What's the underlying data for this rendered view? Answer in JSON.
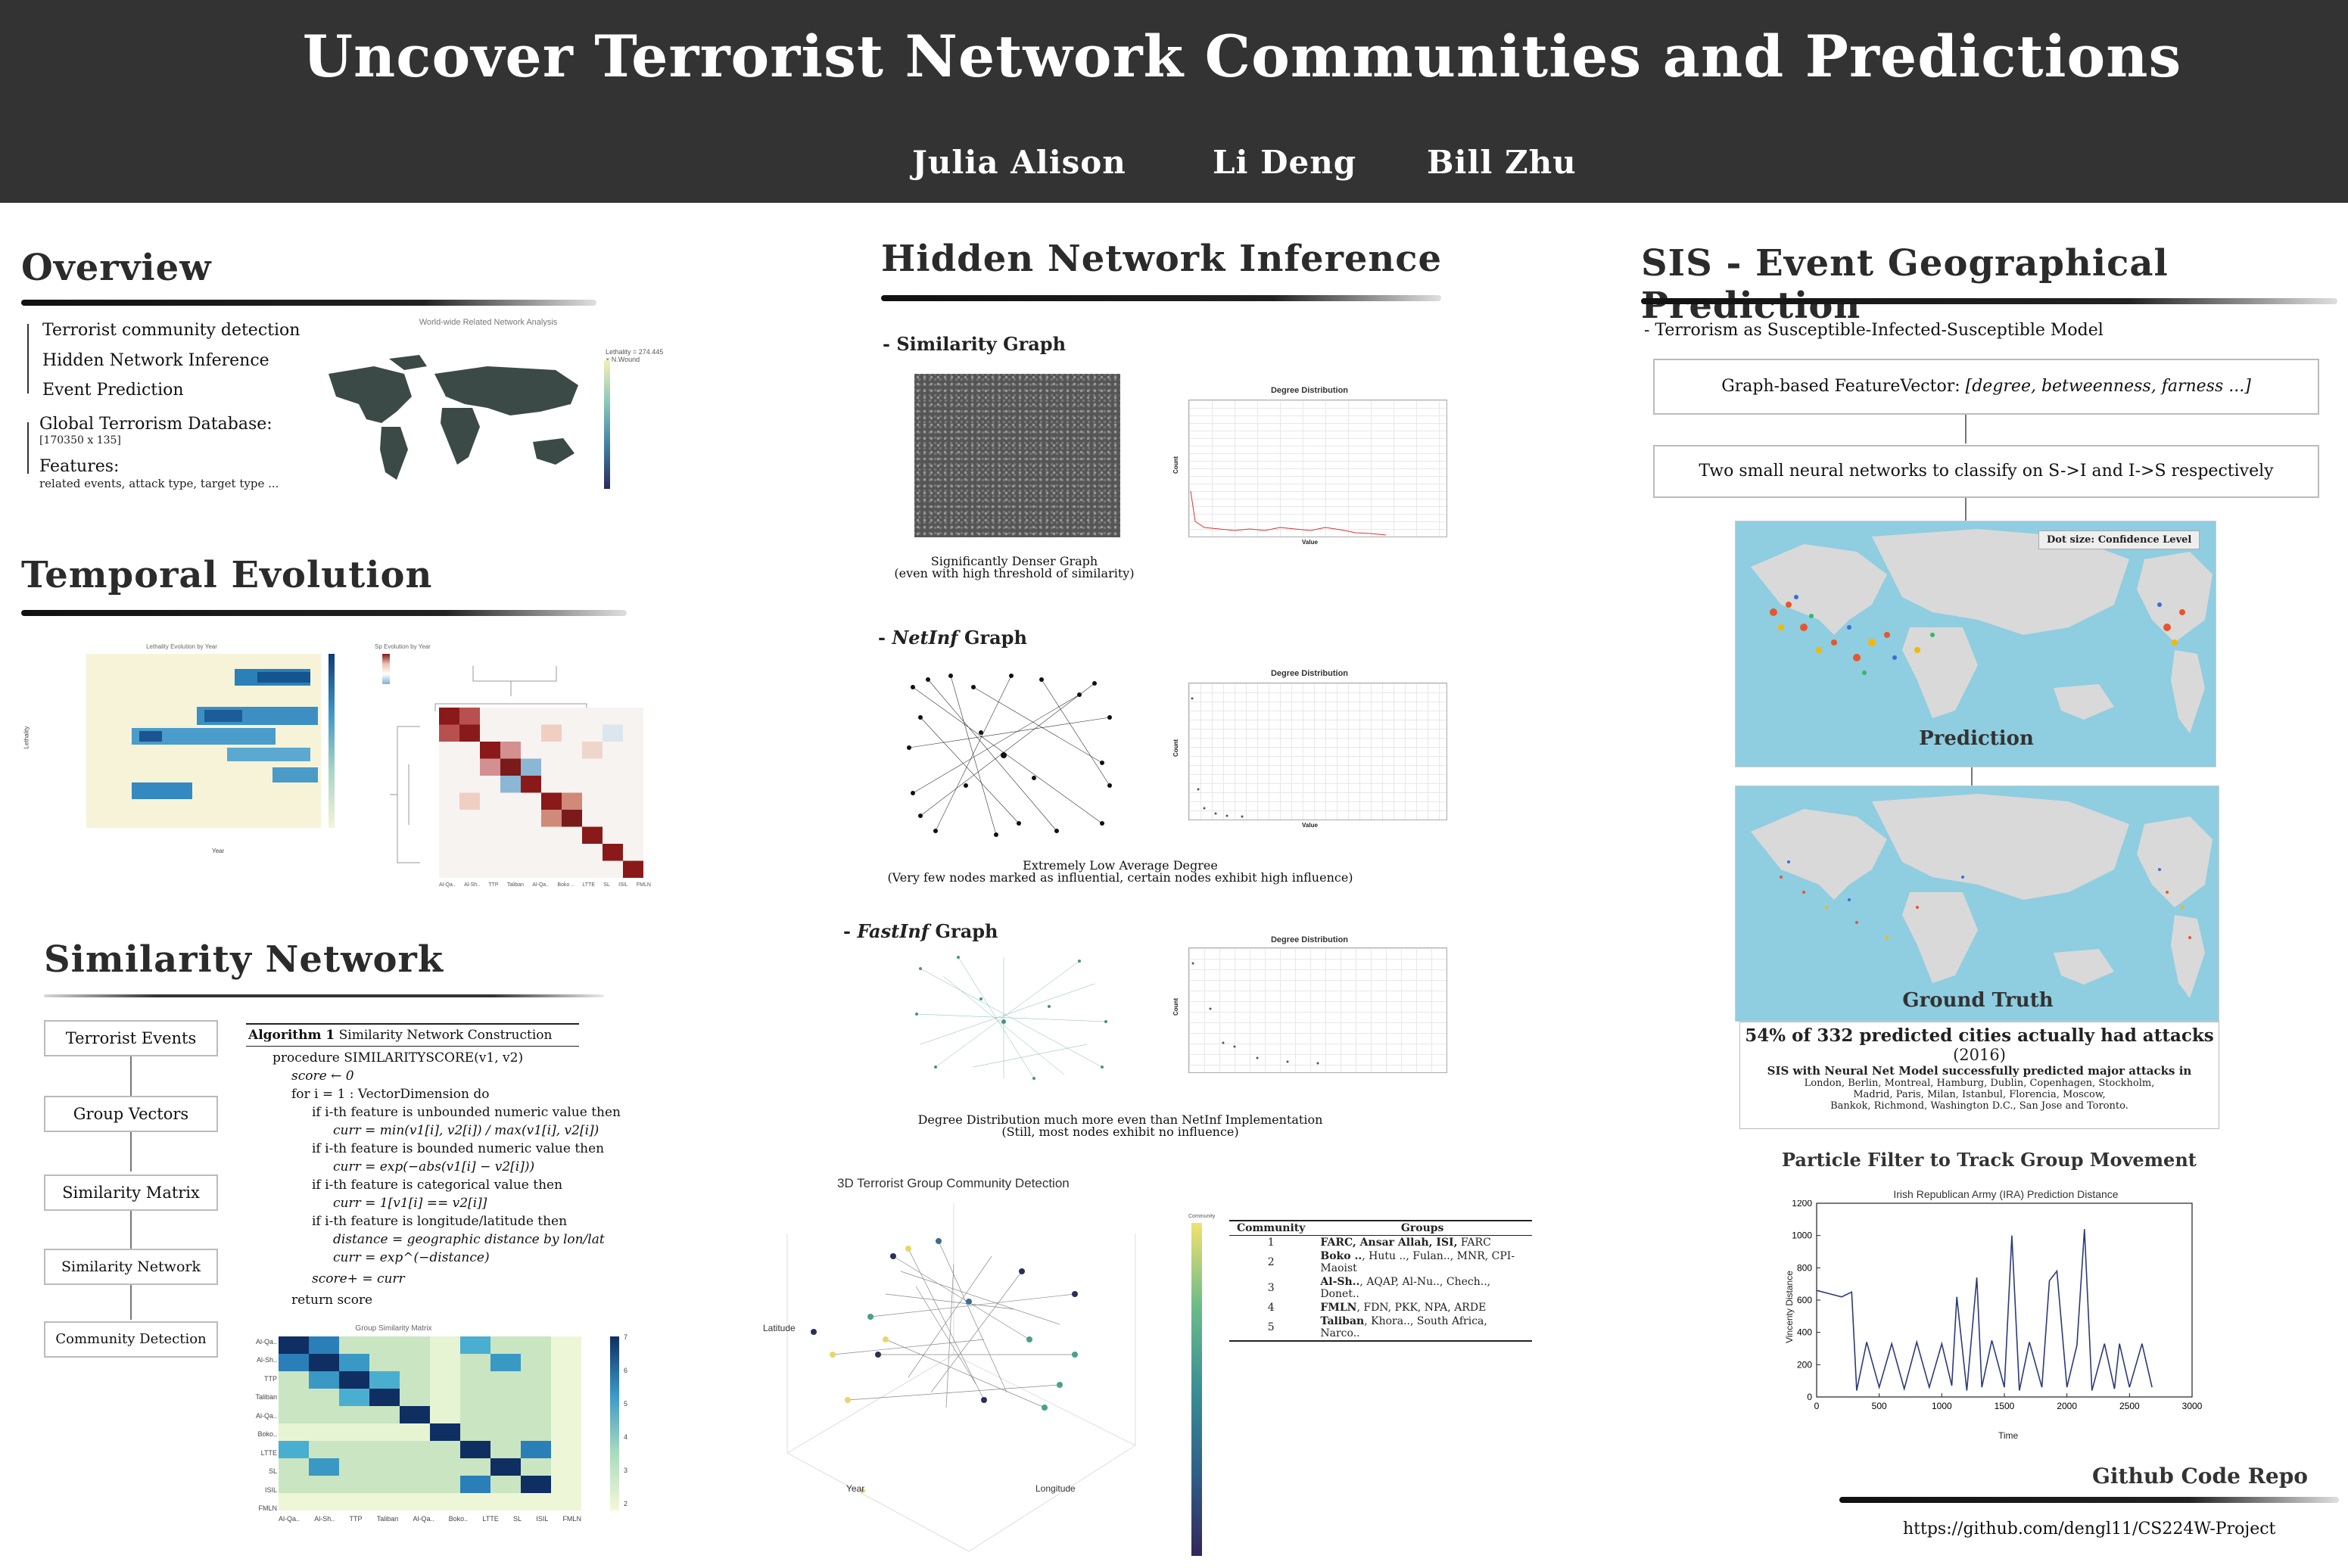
{
  "header": {
    "title": "Uncover Terrorist Network Communities and Predictions",
    "authors": [
      "Julia Alison",
      "Li Deng",
      "Bill Zhu"
    ]
  },
  "overview": {
    "title": "Overview",
    "bullets": [
      "Terrorist community detection",
      "Hidden Network Inference",
      "Event Prediction"
    ],
    "db_label": "Global Terrorism Database:",
    "db_size": "[170350 x 135]",
    "features_label": "Features:",
    "features_text": "related events, attack type, target type ...",
    "map_title": "World-wide Related Network Analysis",
    "map_legend": "Lethality = 274.445 × N.Wound"
  },
  "temporal": {
    "title": "Temporal Evolution",
    "heatmap_title": "Lethality Evolution by Year",
    "heatmap_xlabel": "Year",
    "heatmap_ylabel": "Lethality",
    "cluster_title": "Sp Evolution by Year",
    "cluster_labels": [
      "Al-Qa..",
      "Al-Sh..",
      "TTP",
      "Taliban",
      "Al-Qa..",
      "Boko ..",
      "LTTE",
      "SL",
      "ISIL",
      "FMLN"
    ]
  },
  "similarity_network": {
    "title": "Similarity Network",
    "flow": [
      "Terrorist Events",
      "Group Vectors",
      "Similarity Matrix",
      "Similarity Network",
      "Community Detection"
    ],
    "algo_title": "Algorithm 1",
    "algo_name": "Similarity Network Construction",
    "algo_lines": [
      "procedure SIMILARITYSCORE(v1, v2)",
      "score ← 0",
      "for i = 1 : VectorDimension do",
      "if i-th feature is unbounded numeric value then",
      "curr = min(v1[i], v2[i]) / max(v1[i], v2[i])",
      "if i-th feature is bounded numeric value then",
      "curr = exp(−abs(v1[i] − v2[i]))",
      "if i-th feature is categorical value then",
      "curr = 1[v1[i] == v2[i]]",
      "if i-th feature is longitude/latitude then",
      "distance = geographic distance by lon/lat",
      "curr = exp^(−distance)",
      "score+ = curr",
      "return score"
    ],
    "matrix_title": "Group Similarity Matrix",
    "matrix_labels": [
      "Al-Qa..",
      "Al-Sh..",
      "TTP",
      "Taliban",
      "Al-Qa..",
      "Boko..",
      "LTTE",
      "SL",
      "ISIL",
      "FMLN"
    ],
    "matrix_scale": [
      "7",
      "6",
      "5",
      "4",
      "3",
      "2"
    ]
  },
  "hidden_network": {
    "title": "Hidden Network Inference",
    "similarity_label": "- Similarity Graph",
    "similarity_caption1": "Significantly Denser Graph",
    "similarity_caption2": "(even with high threshold of similarity)",
    "netinf_prefix": "- ",
    "netinf_name": "NetInf",
    "netinf_suffix": " Graph",
    "netinf_caption1": "Extremely Low Average Degree",
    "netinf_caption2": "(Very few nodes marked as influential, certain nodes exhibit high influence)",
    "fastinf_prefix": "- ",
    "fastinf_name": "FastInf",
    "fastinf_suffix": " Graph",
    "fastinf_caption1": "Degree Distribution much more even than NetInf Implementation",
    "fastinf_caption2": "(Still, most nodes exhibit no influence)",
    "dd_title": "Degree Distribution",
    "dd_xlabel": "Value",
    "dd_ylabel": "Count"
  },
  "community": {
    "title": "3D Terrorist Group Community Detection",
    "axis_latitude": "Latitude",
    "axis_year": "Year",
    "axis_longitude": "Longitude",
    "colorbar_label": "Community",
    "table_headers": [
      "Community",
      "Groups"
    ],
    "table_rows": [
      {
        "id": "1",
        "bold": "FARC, Ansar Allah, ISI,",
        "rest": " FARC"
      },
      {
        "id": "2",
        "bold": "Boko ..",
        "rest": ", Hutu .., Fulan.., MNR, CPI-Maoist"
      },
      {
        "id": "3",
        "bold": "Al-Sh..",
        "rest": ", AQAP, Al-Nu.., Chech.., Donet.."
      },
      {
        "id": "4",
        "bold": "FMLN",
        "rest": ", FDN, PKK, NPA, ARDE"
      },
      {
        "id": "5",
        "bold": "Taliban",
        "rest": ", Khora.., South Africa, Narco.."
      }
    ]
  },
  "sis": {
    "title": "SIS - Event Geographical Prediction",
    "subtitle": "- Terrorism as  Susceptible-Infected-Susceptible Model",
    "feature_label": "Graph-based FeatureVector:  ",
    "feature_vector": "[degree, betweenness, farness ...]",
    "nn_text": "Two small neural networks to classify on S->I and I->S respectively",
    "pred_label": "Prediction",
    "pred_legend": "Dot size: Confidence Level",
    "truth_label": "Ground Truth",
    "result_main": "54% of 332 predicted cities actually had attacks",
    "result_year": "(2016)",
    "result_detail1": "SIS with Neural Net Model successfully predicted major attacks in",
    "result_detail2": "London, Berlin, Montreal, Hamburg, Dublin, Copenhagen, Stockholm,",
    "result_detail3": "Madrid, Paris, Milan, Istanbul, Florencia, Moscow,",
    "result_detail4": "Bankok, Richmond, Washington D.C., San Jose and Toronto.",
    "pf_title": "Particle Filter to Track Group Movement",
    "github_title": "Github Code Repo",
    "github_url": "https://github.com/dengl11/CS224W-Project"
  },
  "chart_data": {
    "type": "line",
    "title": "Irish Republican Army (IRA) Prediction Distance",
    "xlabel": "Time",
    "ylabel": "Vincenty Distance",
    "xlim": [
      0,
      3000
    ],
    "ylim": [
      0,
      1200
    ],
    "xticks": [
      "0",
      "500",
      "1000",
      "1500",
      "2000",
      "2500",
      "3000"
    ],
    "yticks": [
      "0",
      "200",
      "400",
      "600",
      "800",
      "1000",
      "1200"
    ],
    "x": [
      0,
      100,
      200,
      280,
      320,
      400,
      500,
      600,
      700,
      800,
      900,
      1000,
      1080,
      1120,
      1200,
      1280,
      1320,
      1400,
      1500,
      1560,
      1620,
      1700,
      1800,
      1860,
      1920,
      2000,
      2080,
      2140,
      2200,
      2300,
      2380,
      2420,
      2500,
      2600,
      2680
    ],
    "values": [
      660,
      640,
      620,
      650,
      40,
      340,
      60,
      330,
      50,
      340,
      60,
      330,
      70,
      620,
      40,
      740,
      60,
      350,
      60,
      1000,
      40,
      340,
      60,
      720,
      780,
      60,
      320,
      1040,
      40,
      330,
      50,
      330,
      60,
      330,
      60
    ]
  }
}
